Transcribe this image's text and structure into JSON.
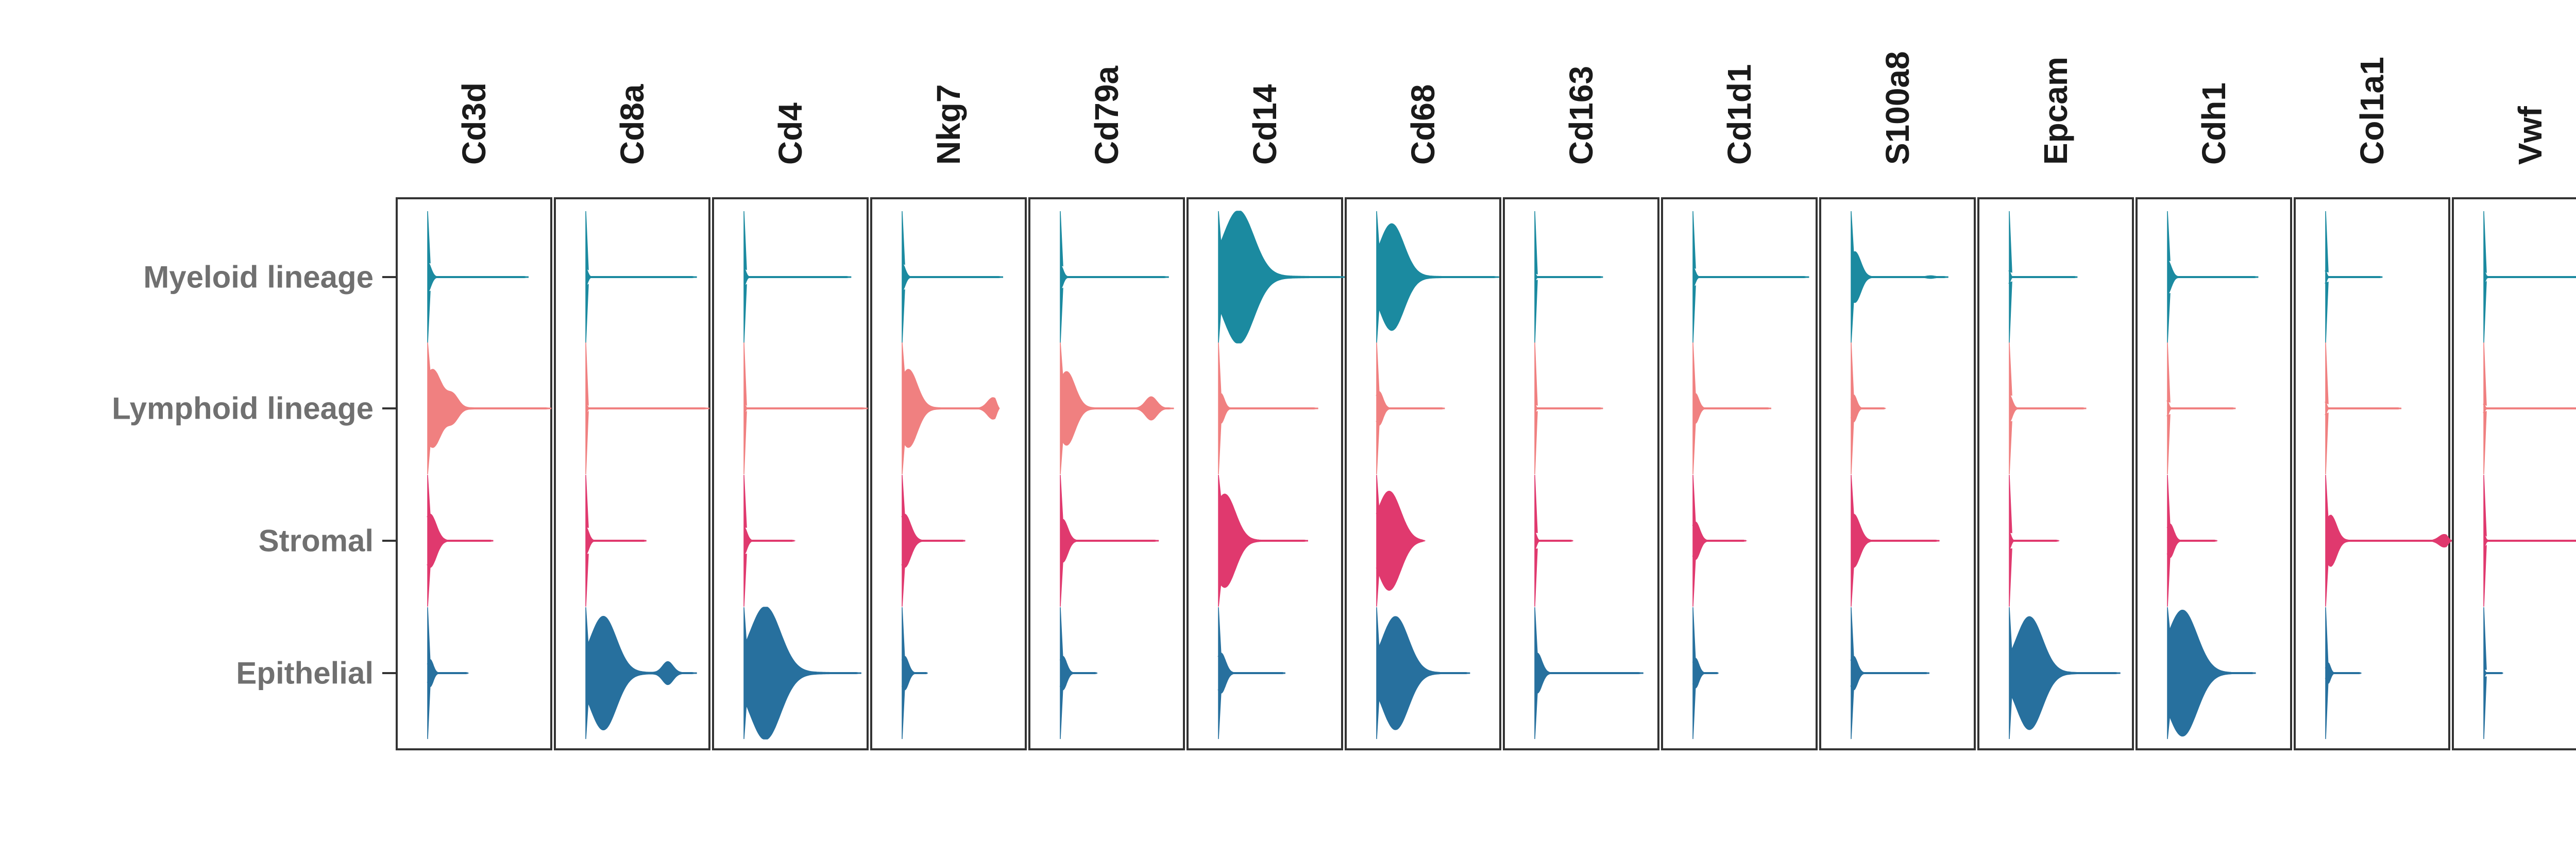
{
  "chart_data": {
    "type": "violin",
    "title": "",
    "xlabel": "",
    "ylabel": "",
    "genes": [
      "Cd3d",
      "Cd8a",
      "Cd4",
      "Nkg7",
      "Cd79a",
      "Cd14",
      "Cd68",
      "Cd163",
      "Cd1d1",
      "S100a8",
      "Epcam",
      "Cdh1",
      "Col1a1",
      "Vwf"
    ],
    "cell_types": [
      {
        "name": "Myeloid lineage",
        "color": "#1b8aa0"
      },
      {
        "name": "Lymphoid lineage",
        "color": "#f08080"
      },
      {
        "name": "Stromal",
        "color": "#e0396e"
      },
      {
        "name": "Epithelial",
        "color": "#27709e"
      }
    ],
    "expression": [
      [
        {
          "max": 0.8,
          "width": 0.22,
          "tail": 0.1,
          "peak": 0.0,
          "bump": null
        },
        {
          "max": 0.98,
          "width": 0.58,
          "tail": 0.25,
          "peak": 0.04,
          "bump": [
            0.2,
            0.32
          ]
        },
        {
          "max": 0.52,
          "width": 0.4,
          "tail": 0.1,
          "peak": 0.02,
          "bump": null
        },
        {
          "max": 0.32,
          "width": 0.2,
          "tail": 0.1,
          "peak": 0.02,
          "bump": null
        }
      ],
      [
        {
          "max": 0.88,
          "width": 0.13,
          "tail": 0.1,
          "peak": 0.0,
          "bump": null
        },
        {
          "max": 0.98,
          "width": 0.08,
          "tail": 0.12,
          "peak": 0.0,
          "bump": null
        },
        {
          "max": 0.48,
          "width": 0.2,
          "tail": 0.1,
          "peak": 0.0,
          "bump": null
        },
        {
          "max": 0.88,
          "width": 0.85,
          "tail": 0.3,
          "peak": 0.14,
          "bump": [
            0.65,
            0.2
          ]
        }
      ],
      [
        {
          "max": 0.85,
          "width": 0.13,
          "tail": 0.1,
          "peak": 0.0,
          "bump": null
        },
        {
          "max": 0.98,
          "width": 0.08,
          "tail": 0.12,
          "peak": 0.0,
          "bump": null
        },
        {
          "max": 0.4,
          "width": 0.2,
          "tail": 0.1,
          "peak": 0.0,
          "bump": null
        },
        {
          "max": 0.93,
          "width": 1.0,
          "tail": 0.3,
          "peak": 0.17,
          "bump": null
        }
      ],
      [
        {
          "max": 0.8,
          "width": 0.2,
          "tail": 0.1,
          "peak": 0.0,
          "bump": null
        },
        {
          "max": 0.77,
          "width": 0.58,
          "tail": 0.25,
          "peak": 0.05,
          "bump": [
            0.72,
            0.28
          ]
        },
        {
          "max": 0.5,
          "width": 0.4,
          "tail": 0.1,
          "peak": 0.02,
          "bump": null
        },
        {
          "max": 0.2,
          "width": 0.25,
          "tail": 0.1,
          "peak": 0.02,
          "bump": null
        }
      ],
      [
        {
          "max": 0.86,
          "width": 0.18,
          "tail": 0.1,
          "peak": 0.0,
          "bump": null
        },
        {
          "max": 0.9,
          "width": 0.55,
          "tail": 0.2,
          "peak": 0.05,
          "bump": [
            0.72,
            0.32
          ]
        },
        {
          "max": 0.78,
          "width": 0.32,
          "tail": 0.12,
          "peak": 0.02,
          "bump": null
        },
        {
          "max": 0.29,
          "width": 0.25,
          "tail": 0.1,
          "peak": 0.02,
          "bump": null
        }
      ],
      [
        {
          "max": 1.0,
          "width": 1.0,
          "tail": 0.3,
          "peak": 0.16,
          "bump": null
        },
        {
          "max": 0.79,
          "width": 0.22,
          "tail": 0.12,
          "peak": 0.02,
          "bump": null
        },
        {
          "max": 0.71,
          "width": 0.7,
          "tail": 0.2,
          "peak": 0.05,
          "bump": null
        },
        {
          "max": 0.53,
          "width": 0.3,
          "tail": 0.1,
          "peak": 0.02,
          "bump": null
        }
      ],
      [
        {
          "max": 0.97,
          "width": 0.8,
          "tail": 0.25,
          "peak": 0.12,
          "bump": null
        },
        {
          "max": 0.54,
          "width": 0.25,
          "tail": 0.1,
          "peak": 0.02,
          "bump": null
        },
        {
          "max": 0.38,
          "width": 0.75,
          "tail": 0.2,
          "peak": 0.1,
          "bump": null
        },
        {
          "max": 0.74,
          "width": 0.85,
          "tail": 0.28,
          "peak": 0.15,
          "bump": null
        }
      ],
      [
        {
          "max": 0.54,
          "width": 0.05,
          "tail": 0.1,
          "peak": 0.0,
          "bump": null
        },
        {
          "max": 0.54,
          "width": 0.05,
          "tail": 0.1,
          "peak": 0.0,
          "bump": null
        },
        {
          "max": 0.3,
          "width": 0.12,
          "tail": 0.1,
          "peak": 0.0,
          "bump": null
        },
        {
          "max": 0.86,
          "width": 0.3,
          "tail": 0.1,
          "peak": 0.02,
          "bump": null
        }
      ],
      [
        {
          "max": 0.92,
          "width": 0.15,
          "tail": 0.1,
          "peak": 0.0,
          "bump": null
        },
        {
          "max": 0.62,
          "width": 0.22,
          "tail": 0.1,
          "peak": 0.02,
          "bump": null
        },
        {
          "max": 0.42,
          "width": 0.28,
          "tail": 0.1,
          "peak": 0.02,
          "bump": null
        },
        {
          "max": 0.2,
          "width": 0.22,
          "tail": 0.1,
          "peak": 0.02,
          "bump": null
        }
      ],
      [
        {
          "max": 0.77,
          "width": 0.38,
          "tail": 0.12,
          "peak": 0.03,
          "bump": [
            0.63,
            0.05
          ]
        },
        {
          "max": 0.27,
          "width": 0.2,
          "tail": 0.1,
          "peak": 0.02,
          "bump": null
        },
        {
          "max": 0.7,
          "width": 0.4,
          "tail": 0.1,
          "peak": 0.02,
          "bump": null
        },
        {
          "max": 0.62,
          "width": 0.25,
          "tail": 0.1,
          "peak": 0.02,
          "bump": null
        }
      ],
      [
        {
          "max": 0.54,
          "width": 0.08,
          "tail": 0.1,
          "peak": 0.0,
          "bump": null
        },
        {
          "max": 0.61,
          "width": 0.2,
          "tail": 0.1,
          "peak": 0.0,
          "bump": null
        },
        {
          "max": 0.39,
          "width": 0.12,
          "tail": 0.1,
          "peak": 0.0,
          "bump": null
        },
        {
          "max": 0.88,
          "width": 0.85,
          "tail": 0.25,
          "peak": 0.16,
          "bump": null
        }
      ],
      [
        {
          "max": 0.72,
          "width": 0.25,
          "tail": 0.12,
          "peak": 0.0,
          "bump": null
        },
        {
          "max": 0.54,
          "width": 0.1,
          "tail": 0.1,
          "peak": 0.0,
          "bump": null
        },
        {
          "max": 0.39,
          "width": 0.25,
          "tail": 0.1,
          "peak": 0.02,
          "bump": null
        },
        {
          "max": 0.7,
          "width": 0.95,
          "tail": 0.25,
          "peak": 0.12,
          "bump": null
        }
      ],
      [
        {
          "max": 0.45,
          "width": 0.08,
          "tail": 0.1,
          "peak": 0.0,
          "bump": null
        },
        {
          "max": 0.6,
          "width": 0.08,
          "tail": 0.1,
          "peak": 0.0,
          "bump": null
        },
        {
          "max": 1.0,
          "width": 0.38,
          "tail": 0.2,
          "peak": 0.04,
          "bump": [
            0.94,
            0.25
          ]
        },
        {
          "max": 0.28,
          "width": 0.15,
          "tail": 0.1,
          "peak": 0.02,
          "bump": null
        }
      ],
      [
        {
          "max": 1.0,
          "width": 0.1,
          "tail": 0.1,
          "peak": 0.0,
          "bump": null
        },
        {
          "max": 0.77,
          "width": 0.05,
          "tail": 0.1,
          "peak": 0.0,
          "bump": null
        },
        {
          "max": 0.95,
          "width": 0.1,
          "tail": 0.1,
          "peak": 0.0,
          "bump": null
        },
        {
          "max": 0.15,
          "width": 0.05,
          "tail": 0.1,
          "peak": 0.0,
          "bump": null
        }
      ]
    ]
  }
}
